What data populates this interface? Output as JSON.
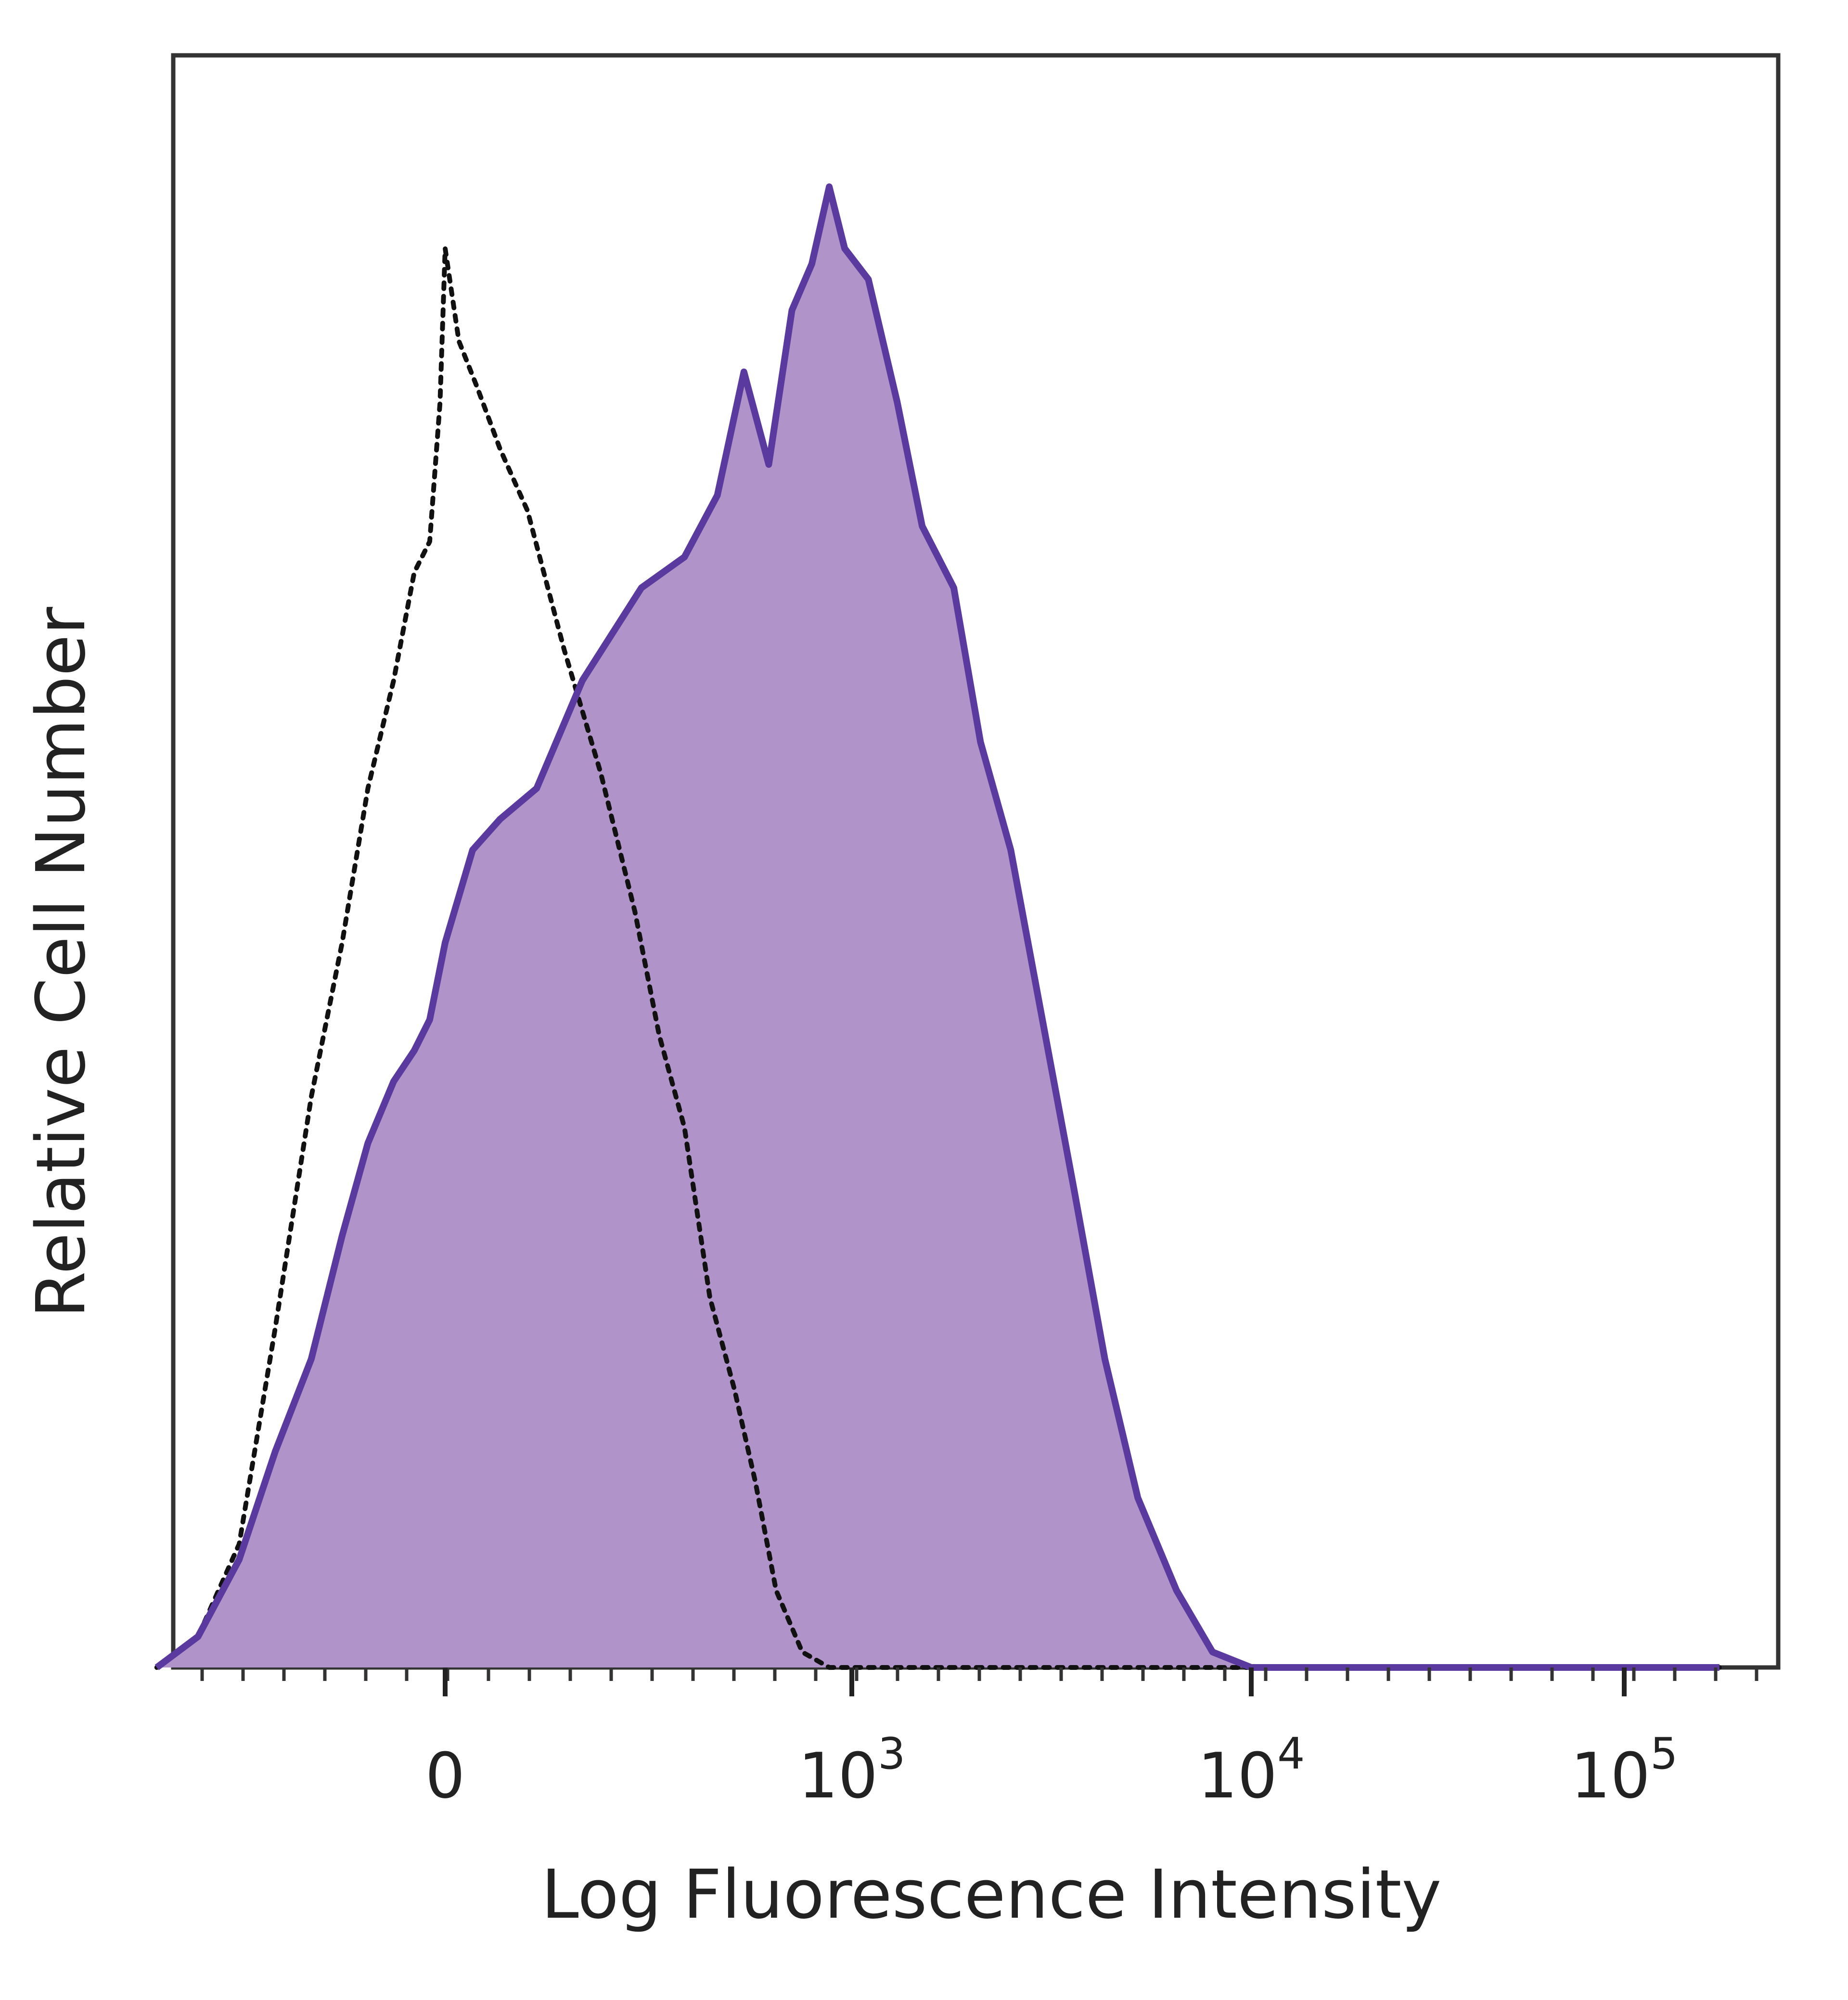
{
  "chart_data": {
    "type": "area",
    "xlabel": "Log Fluorescence Intensity",
    "ylabel": "Relative Cell Number",
    "x_scale": "biexponential",
    "xlim": [
      -600,
      200000
    ],
    "ylim": [
      0,
      100
    ],
    "x_ticks": [
      {
        "value": 0,
        "base": "0",
        "exp": ""
      },
      {
        "value": 1000,
        "base": "10",
        "exp": "3"
      },
      {
        "value": 10000,
        "base": "10",
        "exp": "4"
      },
      {
        "value": 100000,
        "base": "10",
        "exp": "5"
      }
    ],
    "grid": false,
    "series": [
      {
        "style": "dotted",
        "color": "#111111",
        "fill": "none",
        "x": [
          -560,
          -480,
          -400,
          -330,
          -260,
          -200,
          -150,
          -100,
          -60,
          -30,
          -10,
          0,
          15,
          35,
          60,
          90,
          130,
          170,
          210,
          250,
          300,
          360,
          430,
          500,
          580,
          700,
          850,
          1000,
          1300,
          1700,
          2500,
          5000,
          20000,
          180000
        ],
        "y": [
          0,
          2,
          8,
          22,
          37,
          47,
          57,
          64,
          71,
          73,
          82,
          92,
          86,
          83,
          79,
          75,
          66,
          58,
          49,
          41,
          35,
          24,
          18,
          12,
          5,
          1,
          0,
          0,
          0,
          0,
          0,
          0,
          0,
          0
        ]
      },
      {
        "style": "solid",
        "color": "#5a3a9e",
        "fill": "#b093c8",
        "x": [
          -560,
          -480,
          -400,
          -330,
          -260,
          -200,
          -150,
          -100,
          -60,
          -30,
          0,
          30,
          60,
          100,
          150,
          220,
          300,
          380,
          460,
          550,
          650,
          750,
          850,
          950,
          1100,
          1300,
          1500,
          1800,
          2100,
          2500,
          3000,
          3600,
          4300,
          5200,
          6500,
          8000,
          10000,
          15000,
          30000,
          100000,
          180000
        ],
        "y": [
          0,
          2,
          7,
          14,
          20,
          28,
          34,
          38,
          40,
          42,
          47,
          53,
          55,
          57,
          64,
          70,
          72,
          76,
          84,
          78,
          88,
          91,
          96,
          92,
          90,
          82,
          74,
          70,
          60,
          53,
          42,
          31,
          20,
          11,
          5,
          1,
          0,
          0,
          0,
          0,
          0
        ]
      }
    ]
  }
}
